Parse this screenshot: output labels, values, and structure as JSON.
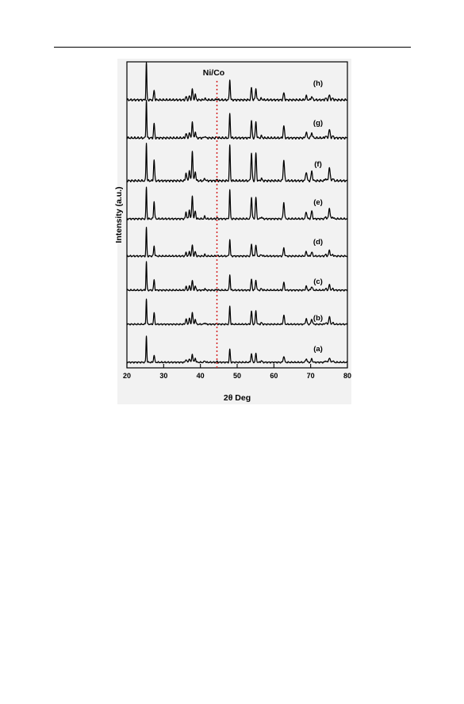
{
  "chart_data": {
    "type": "line",
    "xlabel": "2θ Deg",
    "ylabel": "Intensity (a.u.)",
    "xlim": [
      20,
      80
    ],
    "xticks": [
      20,
      30,
      40,
      50,
      60,
      70,
      80
    ],
    "yticks": [],
    "annotation": {
      "text": "Ni/Co",
      "x": 44.5,
      "line_style": "dotted",
      "color": "#d32020"
    },
    "peak_positions": [
      25.3,
      27.4,
      36.1,
      37.0,
      37.8,
      38.6,
      41.2,
      44.5,
      48.0,
      53.9,
      55.1,
      56.6,
      62.7,
      68.8,
      70.3,
      74.1,
      75.1,
      76.0
    ],
    "series": [
      {
        "name": "(a)",
        "peak_intensities": [
          1.0,
          0.28,
          0.12,
          0.15,
          0.32,
          0.16,
          0.06,
          0.03,
          0.5,
          0.34,
          0.32,
          0.06,
          0.24,
          0.14,
          0.13,
          0.06,
          0.18,
          0.06
        ]
      },
      {
        "name": "(b)",
        "peak_intensities": [
          1.0,
          0.45,
          0.22,
          0.25,
          0.48,
          0.2,
          0.06,
          0.03,
          0.72,
          0.52,
          0.52,
          0.06,
          0.36,
          0.22,
          0.2,
          0.06,
          0.3,
          0.06
        ]
      },
      {
        "name": "(c)",
        "peak_intensities": [
          1.0,
          0.35,
          0.12,
          0.14,
          0.34,
          0.14,
          0.05,
          0.03,
          0.55,
          0.38,
          0.36,
          0.05,
          0.26,
          0.13,
          0.13,
          0.05,
          0.18,
          0.05
        ]
      },
      {
        "name": "(d)",
        "peak_intensities": [
          1.0,
          0.35,
          0.12,
          0.15,
          0.38,
          0.15,
          0.05,
          0.03,
          0.58,
          0.42,
          0.4,
          0.05,
          0.28,
          0.15,
          0.14,
          0.05,
          0.2,
          0.05
        ]
      },
      {
        "name": "(e)",
        "peak_intensities": [
          1.0,
          0.55,
          0.22,
          0.28,
          0.72,
          0.25,
          0.08,
          0.03,
          0.9,
          0.68,
          0.68,
          0.06,
          0.52,
          0.22,
          0.24,
          0.06,
          0.34,
          0.06
        ]
      },
      {
        "name": "(f)",
        "peak_intensities": [
          1.0,
          0.55,
          0.22,
          0.28,
          0.78,
          0.25,
          0.07,
          0.03,
          0.92,
          0.72,
          0.72,
          0.06,
          0.55,
          0.24,
          0.25,
          0.06,
          0.36,
          0.06
        ]
      },
      {
        "name": "(g)",
        "peak_intensities": [
          1.0,
          0.38,
          0.12,
          0.14,
          0.42,
          0.16,
          0.05,
          0.03,
          0.65,
          0.44,
          0.42,
          0.05,
          0.32,
          0.15,
          0.14,
          0.05,
          0.22,
          0.05
        ]
      },
      {
        "name": "(h)",
        "peak_intensities": [
          1.0,
          0.25,
          0.08,
          0.1,
          0.28,
          0.14,
          0.04,
          0.03,
          0.55,
          0.32,
          0.3,
          0.04,
          0.18,
          0.1,
          0.09,
          0.04,
          0.12,
          0.04
        ]
      }
    ],
    "grid": false,
    "legend": "none",
    "colors": {
      "lines": "#000000",
      "marker_line": "#d32020",
      "panel_bg": "#f2f2f2"
    }
  }
}
